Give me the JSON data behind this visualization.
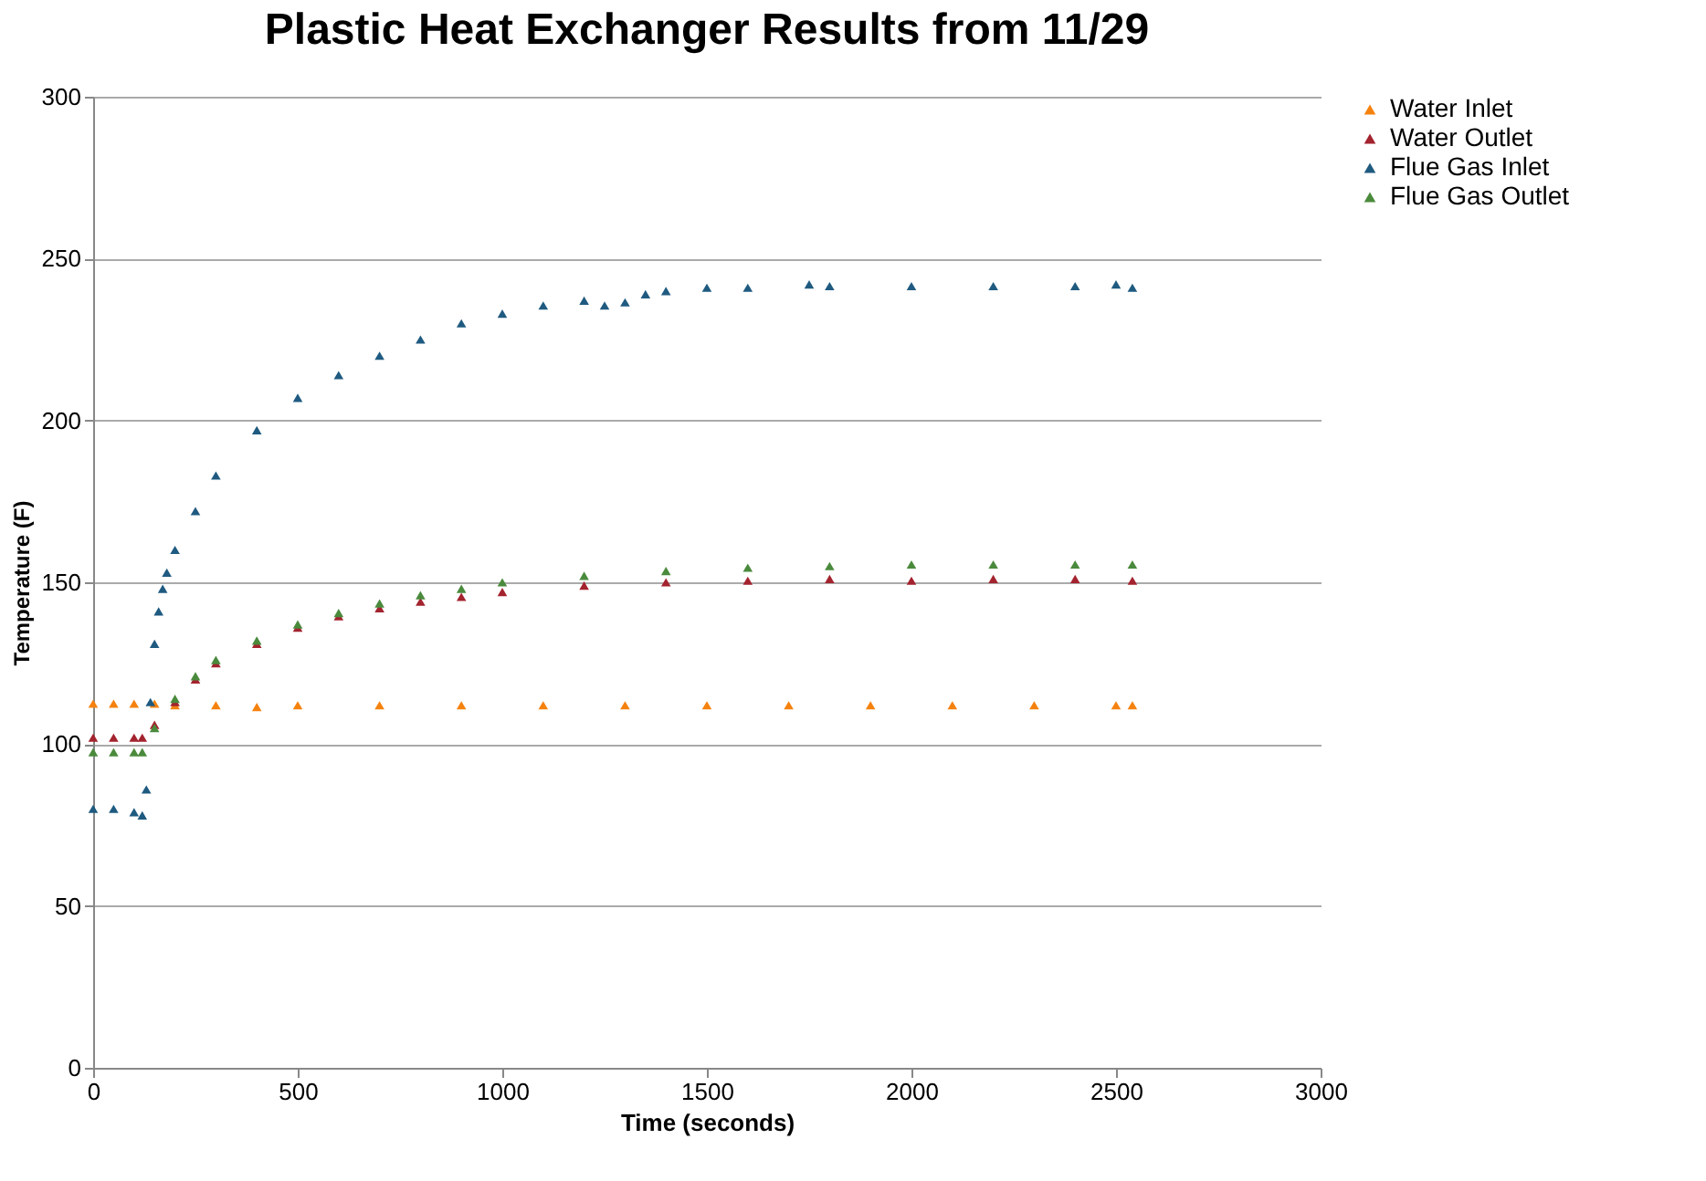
{
  "chart_data": {
    "type": "scatter",
    "title": "Plastic Heat Exchanger Results from 11/29",
    "xlabel": "Time (seconds)",
    "ylabel": "Temperature (F)",
    "xlim": [
      0,
      3000
    ],
    "xticks": [
      0,
      500,
      1000,
      1500,
      2000,
      2500,
      3000
    ],
    "ylim": [
      0,
      300
    ],
    "yticks": [
      0,
      50,
      100,
      150,
      200,
      250,
      300
    ],
    "grid": "y",
    "legend": "right",
    "marker": "triangle",
    "series": [
      {
        "name": "Water Inlet",
        "color": "#f5820f",
        "x": [
          0,
          50,
          100,
          150,
          200,
          300,
          400,
          500,
          700,
          900,
          1100,
          1300,
          1500,
          1700,
          1900,
          2100,
          2300,
          2500,
          2540
        ],
        "values": [
          112.5,
          112.5,
          112.5,
          112.5,
          112,
          112,
          111.5,
          112,
          112,
          112,
          112,
          112,
          112,
          112,
          112,
          112,
          112,
          112,
          112
        ]
      },
      {
        "name": "Water Outlet",
        "color": "#a3232e",
        "x": [
          0,
          50,
          100,
          120,
          150,
          200,
          250,
          300,
          400,
          500,
          600,
          700,
          800,
          900,
          1000,
          1200,
          1400,
          1600,
          1800,
          2000,
          2200,
          2400,
          2540
        ],
        "values": [
          102,
          102,
          102,
          102,
          106,
          113,
          120,
          125,
          131,
          136,
          139.5,
          142,
          144,
          145.5,
          147,
          149,
          150,
          150.5,
          151,
          150.5,
          151,
          151,
          150.5
        ]
      },
      {
        "name": "Flue Gas Inlet",
        "color": "#1f5a80",
        "x": [
          0,
          50,
          100,
          120,
          130,
          140,
          150,
          160,
          170,
          180,
          200,
          250,
          300,
          400,
          500,
          600,
          700,
          800,
          900,
          1000,
          1100,
          1200,
          1250,
          1300,
          1350,
          1400,
          1500,
          1600,
          1750,
          1800,
          2000,
          2200,
          2400,
          2500,
          2540
        ],
        "values": [
          80,
          80,
          79,
          78,
          86,
          113,
          131,
          141,
          148,
          153,
          160,
          172,
          183,
          197,
          207,
          214,
          220,
          225,
          230,
          233,
          235.5,
          237,
          235.5,
          236.5,
          239,
          240,
          241,
          241,
          242,
          241.5,
          241.5,
          241.5,
          241.5,
          242,
          241
        ]
      },
      {
        "name": "Flue Gas Outlet",
        "color": "#4a8a3c",
        "x": [
          0,
          50,
          100,
          120,
          150,
          200,
          250,
          300,
          400,
          500,
          600,
          700,
          800,
          900,
          1000,
          1200,
          1400,
          1600,
          1800,
          2000,
          2200,
          2400,
          2540
        ],
        "values": [
          97.5,
          97.5,
          97.5,
          97.5,
          105,
          114,
          121,
          126,
          132,
          137,
          140.5,
          143.5,
          146,
          148,
          150,
          152,
          153.5,
          154.5,
          155,
          155.5,
          155.5,
          155.5,
          155.5
        ]
      }
    ]
  }
}
